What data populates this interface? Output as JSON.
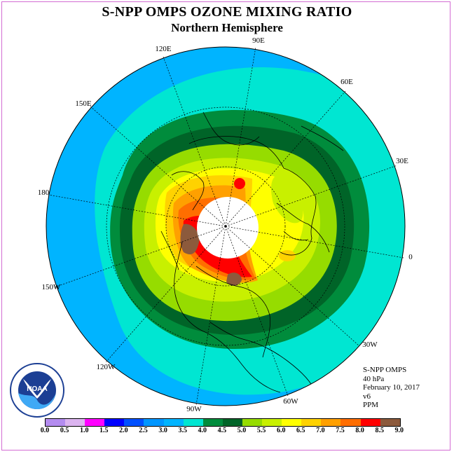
{
  "title": "S-NPP OMPS OZONE MIXING RATIO",
  "subtitle": "Northern Hemisphere",
  "longitude_labels": [
    "90E",
    "60E",
    "30E",
    "0",
    "30W",
    "60W",
    "90W",
    "120W",
    "150W",
    "180",
    "150E",
    "120E"
  ],
  "info": {
    "instrument": "S-NPP OMPS",
    "level": "40 hPa",
    "date": "February 10, 2017",
    "version": "v6",
    "units": "PPM"
  },
  "logo_text": "NOAA",
  "colorbar": {
    "ticks": [
      "0.0",
      "0.5",
      "1.0",
      "1.5",
      "2.0",
      "2.5",
      "3.0",
      "3.5",
      "4.0",
      "4.5",
      "5.0",
      "5.5",
      "6.0",
      "6.5",
      "7.0",
      "7.5",
      "8.0",
      "8.5",
      "9.0"
    ],
    "colors": [
      "#b48cf0",
      "#dcb4f0",
      "#ff00ff",
      "#0000ff",
      "#0050ff",
      "#0096ff",
      "#00b4ff",
      "#00e6d2",
      "#008c3c",
      "#006428",
      "#96dc00",
      "#c8f000",
      "#ffff00",
      "#ffd200",
      "#ffa000",
      "#ff6e00",
      "#ff0000",
      "#8c5a3c"
    ]
  }
}
